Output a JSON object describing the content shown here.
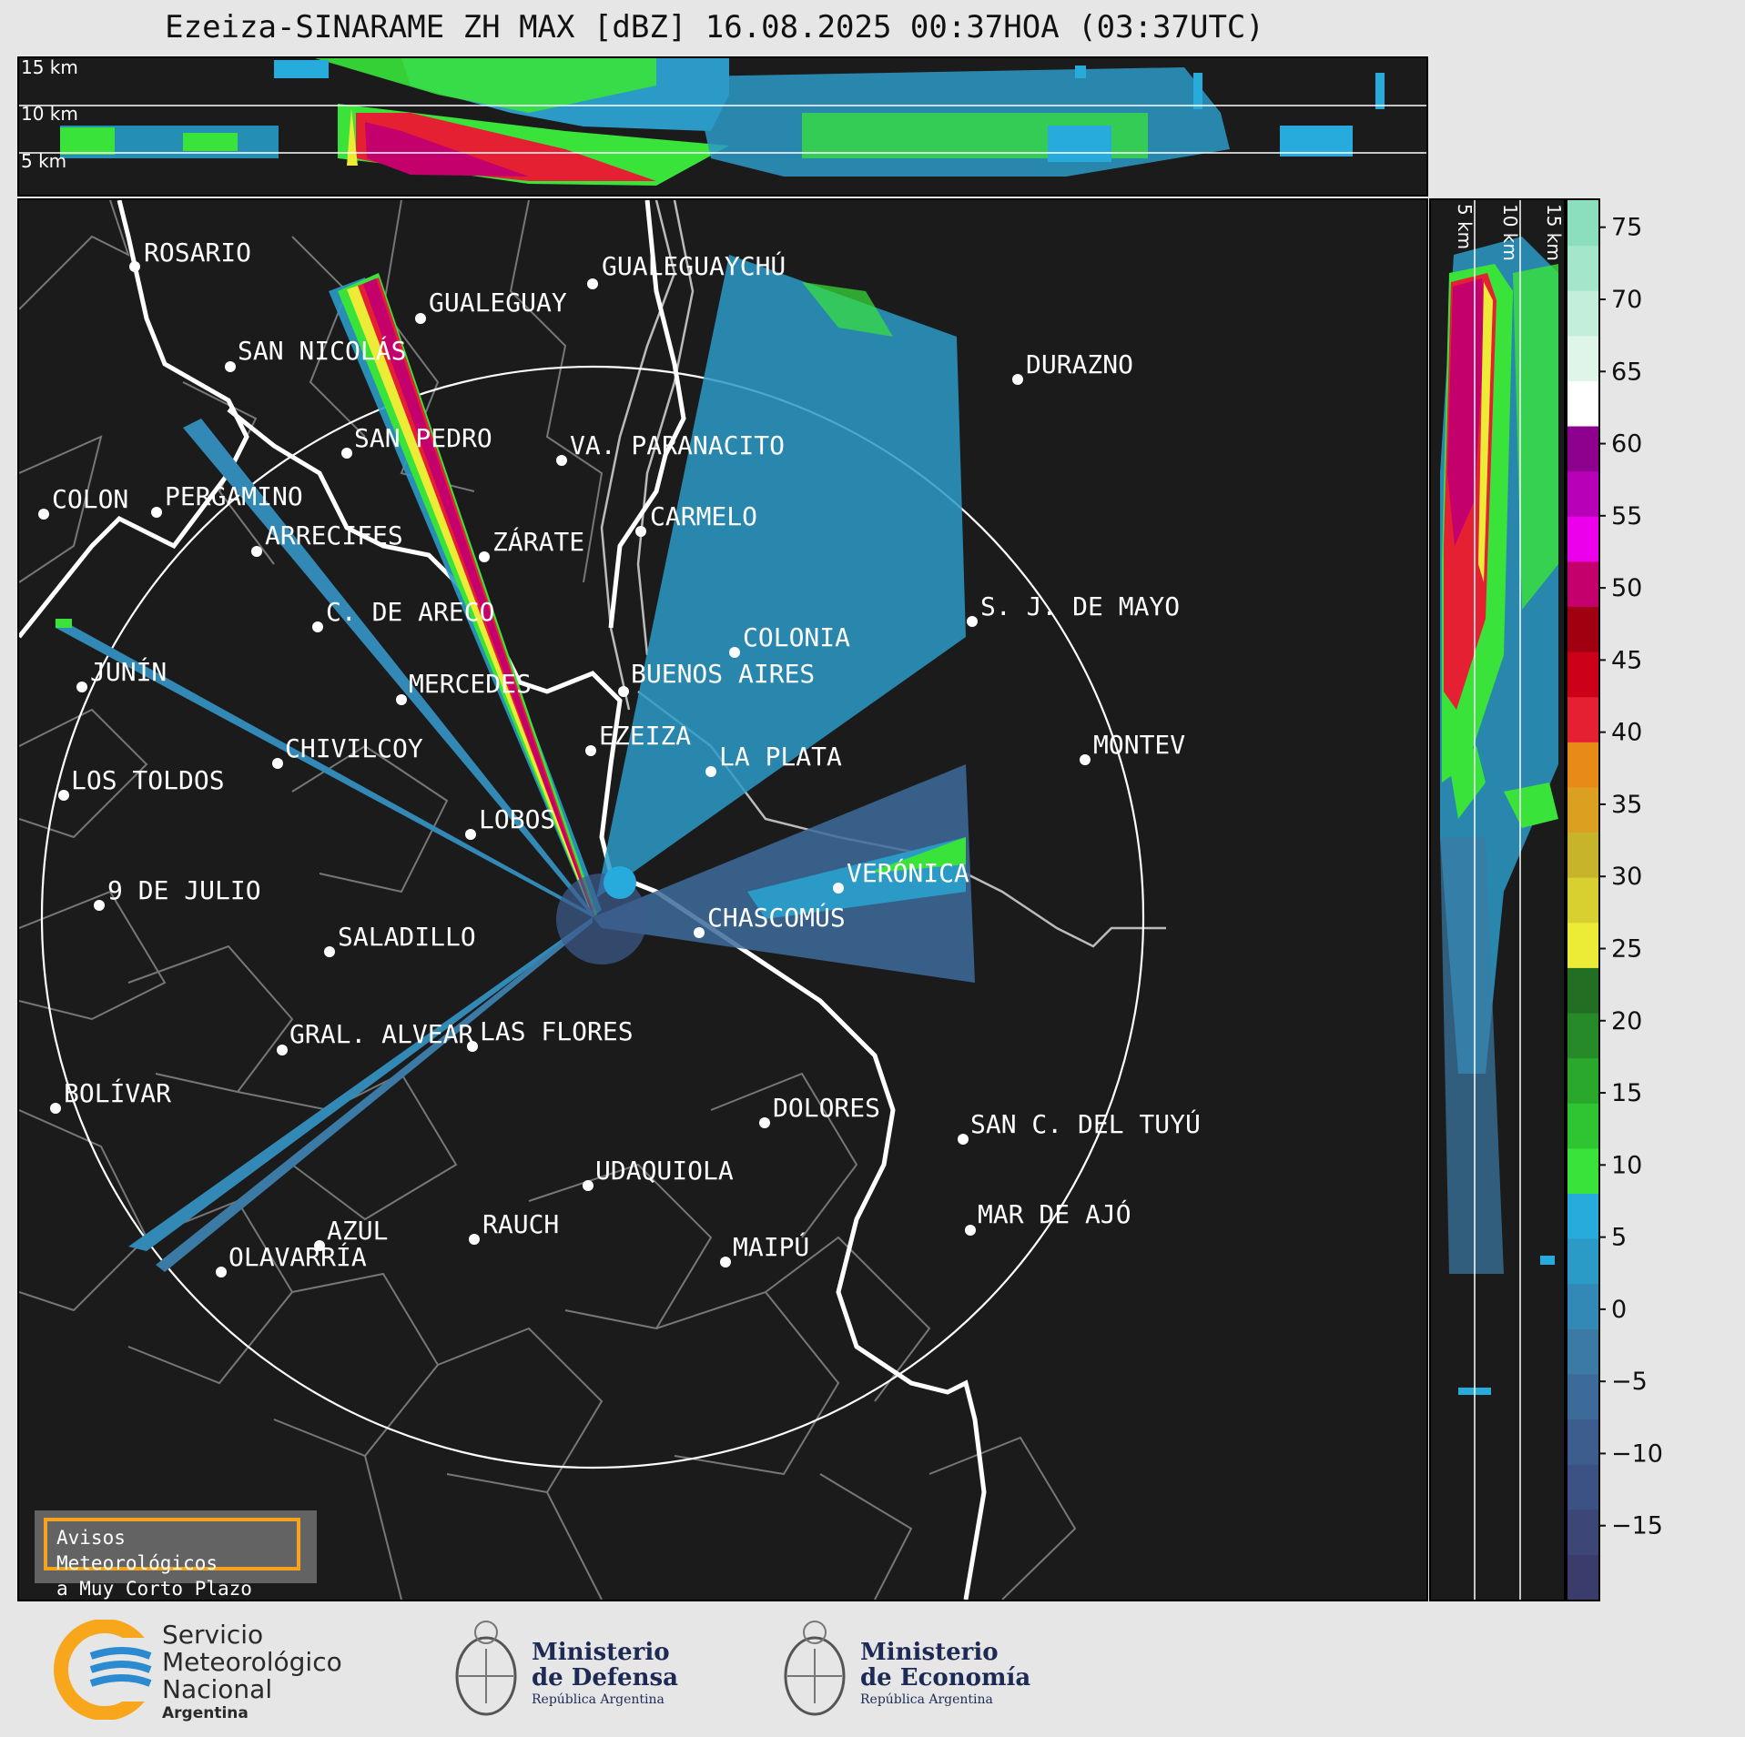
{
  "title": "Ezeiza-SINARAME ZH MAX [dBZ] 16.08.2025 00:37HOA (03:37UTC)",
  "top_panel": {
    "height_labels": [
      "15 km",
      "10 km",
      "5 km"
    ]
  },
  "side_panel": {
    "height_labels": [
      "5 km",
      "10 km",
      "15 km"
    ]
  },
  "colorbar": {
    "ticks": [
      75,
      70,
      65,
      60,
      55,
      50,
      45,
      40,
      35,
      30,
      25,
      20,
      15,
      10,
      5,
      0,
      -5,
      -10,
      -15
    ],
    "tick_labels": [
      "75",
      "70",
      "65",
      "60",
      "55",
      "50",
      "45",
      "40",
      "35",
      "30",
      "25",
      "20",
      "15",
      "10",
      "5",
      "0",
      "−5",
      "−10",
      "−15"
    ],
    "range": [
      -20,
      77
    ],
    "colors": [
      "#3a3d6b",
      "#3c4778",
      "#3d5284",
      "#3d5d8f",
      "#3c6b9a",
      "#3a7aa5",
      "#3389b6",
      "#2b9ac7",
      "#27abdc",
      "#39e33a",
      "#2fc431",
      "#2aa82c",
      "#268a28",
      "#226e22",
      "#ecec36",
      "#d8d030",
      "#c8b42a",
      "#dca020",
      "#e88a18",
      "#e52033",
      "#cc0018",
      "#a00010",
      "#c4006c",
      "#ec00ec",
      "#b800b8",
      "#8e008e",
      "#ffffff",
      "#dff5ea",
      "#c2eedb",
      "#a4e6cc",
      "#8cdfbe"
    ]
  },
  "map": {
    "radar_site": "EZEIZA",
    "cities": [
      {
        "name": "ROSARIO"
      },
      {
        "name": "GUALEGUAYCHÚ"
      },
      {
        "name": "GUALEGUAY"
      },
      {
        "name": "SAN NICOLÁS"
      },
      {
        "name": "DURAZNO"
      },
      {
        "name": "SAN PEDRO"
      },
      {
        "name": "VA. PARANACITO"
      },
      {
        "name": "COLON"
      },
      {
        "name": "PERGAMINO"
      },
      {
        "name": "CARMELO"
      },
      {
        "name": "ARRECIFES"
      },
      {
        "name": "ZÁRATE"
      },
      {
        "name": "S. J. DE MAYO"
      },
      {
        "name": "C. DE ARECO"
      },
      {
        "name": "COLONIA"
      },
      {
        "name": "JUNÍN"
      },
      {
        "name": "BUENOS AIRES"
      },
      {
        "name": "MERCEDES"
      },
      {
        "name": "MONTEV"
      },
      {
        "name": "EZEIZA"
      },
      {
        "name": "CHIVILCOY"
      },
      {
        "name": "LA PLATA"
      },
      {
        "name": "LOS TOLDOS"
      },
      {
        "name": "LOBOS"
      },
      {
        "name": "VERÓNICA"
      },
      {
        "name": "9 DE JULIO"
      },
      {
        "name": "CHASCOMÚS"
      },
      {
        "name": "SALADILLO"
      },
      {
        "name": "GRAL. ALVEAR"
      },
      {
        "name": "LAS FLORES"
      },
      {
        "name": "BOLÍVAR"
      },
      {
        "name": "DOLORES"
      },
      {
        "name": "SAN C. DEL TUYÚ"
      },
      {
        "name": "UDAQUIOLA"
      },
      {
        "name": "MAR DE AJÓ"
      },
      {
        "name": "AZUL"
      },
      {
        "name": "RAUCH"
      },
      {
        "name": "MAIPÚ"
      },
      {
        "name": "OLAVARRÍA"
      }
    ]
  },
  "legend": {
    "line1": "Avisos Meteorológicos",
    "line2": "a Muy Corto Plazo"
  },
  "logos": {
    "smn": {
      "line1": "Servicio",
      "line2": "Meteorológico",
      "line3": "Nacional",
      "line4": "Argentina",
      "colors": [
        "#f8a61b",
        "#2c8bd0"
      ]
    },
    "defensa": {
      "line1": "Ministerio",
      "line2": "de Defensa",
      "line3": "República Argentina"
    },
    "economia": {
      "line1": "Ministerio",
      "line2": "de Economía",
      "line3": "República Argentina"
    }
  }
}
